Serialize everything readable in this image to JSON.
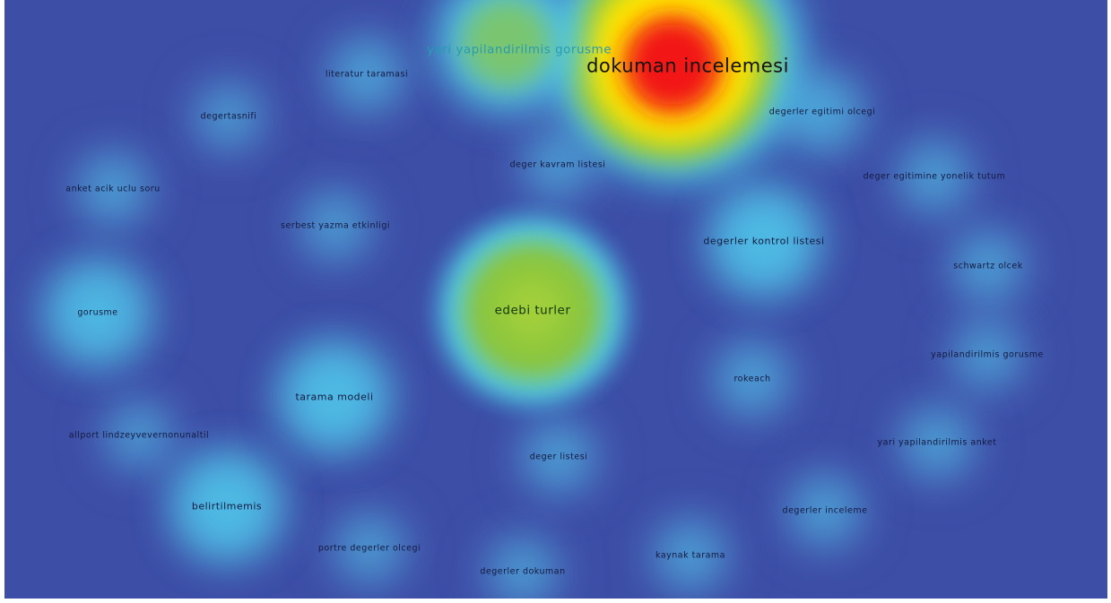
{
  "colors": {
    "background": "#3d4ea6",
    "density_low": "#4fd0f0",
    "density_mid": "#8cc63e",
    "density_high": "#ffe600",
    "density_peak": "#f21414"
  },
  "terms": [
    {
      "id": "dokuman-incelemesi",
      "label": "dokuman incelemesi",
      "weight": 1.0
    },
    {
      "id": "yari-yapilandirilmis-gorusme",
      "label": "yari yapilandirilmis gorusme",
      "weight": 0.55
    },
    {
      "id": "edebi-turler",
      "label": "edebi turler",
      "weight": 0.6
    },
    {
      "id": "literatur-taramasi",
      "label": "literatur taramasi",
      "weight": 0.15
    },
    {
      "id": "degertasnifi",
      "label": "degertasnifi",
      "weight": 0.12
    },
    {
      "id": "degerler-egitimi-olcegi",
      "label": "degerler egitimi olcegi",
      "weight": 0.18
    },
    {
      "id": "deger-kavram-listesi",
      "label": "deger kavram listesi",
      "weight": 0.13
    },
    {
      "id": "deger-egitimine-yonelik-tutum",
      "label": "deger egitimine yonelik tutum",
      "weight": 0.14
    },
    {
      "id": "anket-acik-uclu-soru",
      "label": "anket acik uclu soru",
      "weight": 0.14
    },
    {
      "id": "serbest-yazma-etkinligi",
      "label": "serbest yazma etkinligi",
      "weight": 0.13
    },
    {
      "id": "degerler-kontrol-listesi",
      "label": "degerler kontrol listesi",
      "weight": 0.3
    },
    {
      "id": "schwartz-olcek",
      "label": "schwartz olcek",
      "weight": 0.14
    },
    {
      "id": "gorusme",
      "label": "gorusme",
      "weight": 0.28
    },
    {
      "id": "yapilandirilmis-gorusme",
      "label": "yapilandirilmis gorusme",
      "weight": 0.13
    },
    {
      "id": "rokeach",
      "label": "rokeach",
      "weight": 0.15
    },
    {
      "id": "tarama-modeli",
      "label": "tarama modeli",
      "weight": 0.3
    },
    {
      "id": "allport-lindzeyvevernonunaltil",
      "label": "allport lindzeyvevernonunaltil",
      "weight": 0.12
    },
    {
      "id": "yari-yapilandirilmis-anket",
      "label": "yari yapilandirilmis anket",
      "weight": 0.14
    },
    {
      "id": "deger-listesi",
      "label": "deger listesi",
      "weight": 0.14
    },
    {
      "id": "belirtilmemis",
      "label": "belirtilmemis",
      "weight": 0.3
    },
    {
      "id": "degerler-inceleme",
      "label": "degerler inceleme",
      "weight": 0.14
    },
    {
      "id": "portre-degerler-olcegi",
      "label": "portre degerler olcegi",
      "weight": 0.13
    },
    {
      "id": "kaynak-tarama",
      "label": "kaynak tarama",
      "weight": 0.14
    },
    {
      "id": "degerler-dokuman",
      "label": "degerler dokuman",
      "weight": 0.13
    }
  ]
}
